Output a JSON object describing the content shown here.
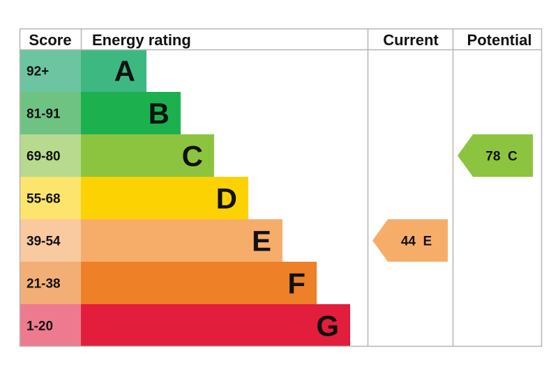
{
  "headers": {
    "score": "Score",
    "energy_rating": "Energy rating",
    "current": "Current",
    "potential": "Potential"
  },
  "chart_data": {
    "type": "table",
    "bands": [
      {
        "letter": "A",
        "range": "92+",
        "min": 92,
        "max": 100,
        "color": "#3DB881",
        "score_bg": "#6CC5A0"
      },
      {
        "letter": "B",
        "range": "81-91",
        "min": 81,
        "max": 91,
        "color": "#1CB14E",
        "score_bg": "#6EC383"
      },
      {
        "letter": "C",
        "range": "69-80",
        "min": 69,
        "max": 80,
        "color": "#8CC43F",
        "score_bg": "#B7DA8E"
      },
      {
        "letter": "D",
        "range": "55-68",
        "min": 55,
        "max": 68,
        "color": "#FDD203",
        "score_bg": "#FDE46D"
      },
      {
        "letter": "E",
        "range": "39-54",
        "min": 39,
        "max": 54,
        "color": "#F7AD6A",
        "score_bg": "#F9C9A0"
      },
      {
        "letter": "F",
        "range": "21-38",
        "min": 21,
        "max": 38,
        "color": "#EE8027",
        "score_bg": "#F3AE76"
      },
      {
        "letter": "G",
        "range": "1-20",
        "min": 1,
        "max": 20,
        "color": "#E31D3C",
        "score_bg": "#EE7A90"
      }
    ],
    "current": {
      "value": 44,
      "letter": "E",
      "label": "44  E",
      "color": "#F7AD6A"
    },
    "potential": {
      "value": 78,
      "letter": "C",
      "label": "78  C",
      "color": "#8CC43F"
    }
  }
}
